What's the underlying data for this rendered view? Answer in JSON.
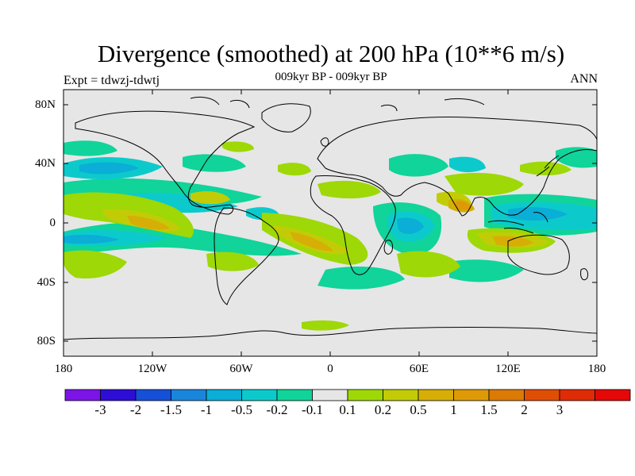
{
  "title": "Divergence (smoothed) at 200 hPa (10**6 m/s)",
  "subtitle": "009kyr BP - 009kyr BP",
  "experiment_label": "Expt = tdwzj-tdwtj",
  "season_label": "ANN",
  "latitude_ticks": [
    "80N",
    "40N",
    "0",
    "40S",
    "80S"
  ],
  "longitude_ticks": [
    "180",
    "120W",
    "60W",
    "0",
    "60E",
    "120E",
    "180"
  ],
  "colorbar": {
    "colors": [
      "#7c14e8",
      "#2e0ed6",
      "#1650d8",
      "#1a86db",
      "#0aaed6",
      "#0ccacc",
      "#10d49a",
      "#e6e6e6",
      "#9ed806",
      "#c2cc06",
      "#d6ae06",
      "#de9a06",
      "#dc7a06",
      "#e04e06",
      "#e02c06",
      "#e60808"
    ],
    "labels": [
      "-3",
      "-2",
      "-1.5",
      "-1",
      "-0.5",
      "-0.2",
      "-0.1",
      "0.1",
      "0.2",
      "0.5",
      "1",
      "1.5",
      "2",
      "3"
    ]
  },
  "map_colors": {
    "background": "#e6e6e6",
    "negative_weak": "#10d49a",
    "negative_moderate": "#0ccacc",
    "negative_strong": "#0aaed6",
    "positive_weak": "#9ed806",
    "positive_moderate": "#c2cc06",
    "positive_strong": "#d6ae06",
    "positive_stronger": "#de9a06",
    "coastline": "#000000"
  }
}
